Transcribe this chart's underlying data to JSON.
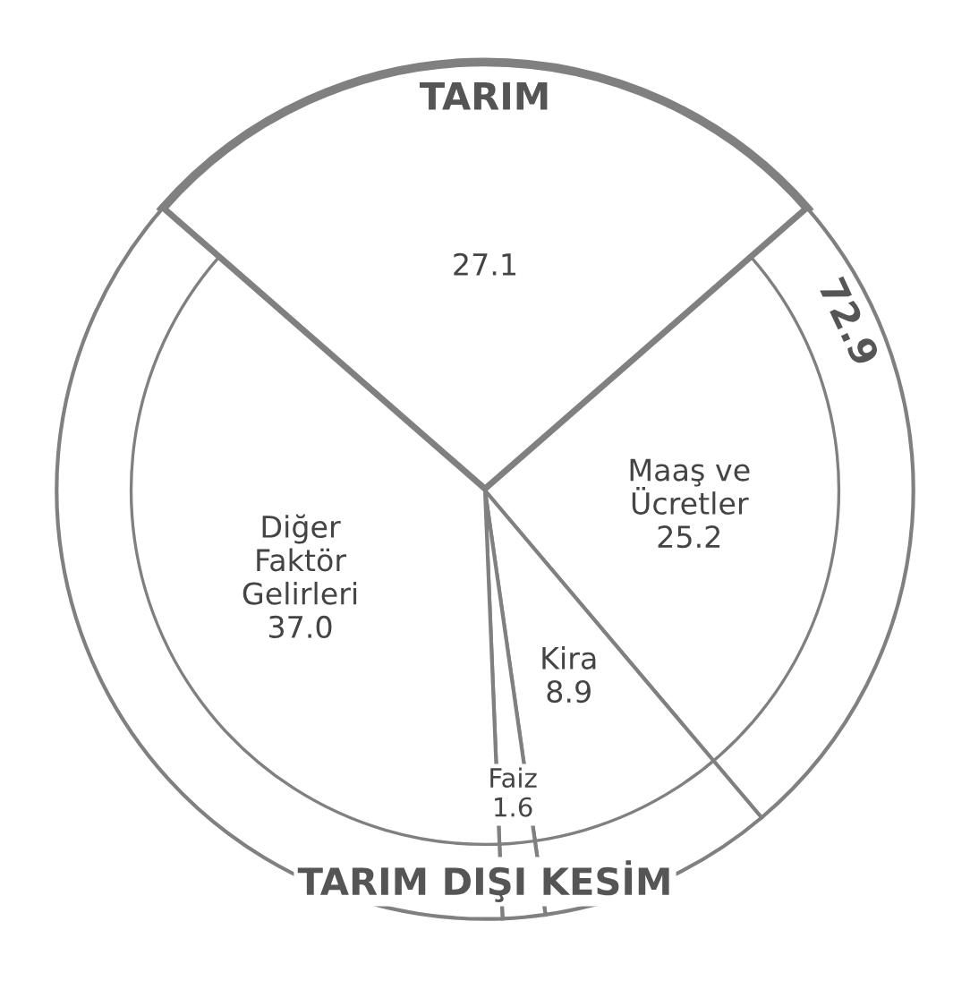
{
  "chart_data": {
    "type": "pie",
    "categories": [
      "TARIM",
      "Maaş ve\nÜcretler",
      "Kira",
      "Faiz",
      "Diğer\nFaktör\nGelirleri"
    ],
    "values": [
      27.1,
      25.2,
      8.9,
      1.6,
      37.0
    ],
    "colors": [
      "#ffffff",
      "#ffffff",
      "#ffffff",
      "#ffffff",
      "#ffffff"
    ],
    "value_labels": [
      "27.1",
      "25.2",
      "8.9",
      "1.6",
      "37.0"
    ],
    "annotations": [
      "TARIM DIŞI KESİM",
      "72.9"
    ]
  }
}
